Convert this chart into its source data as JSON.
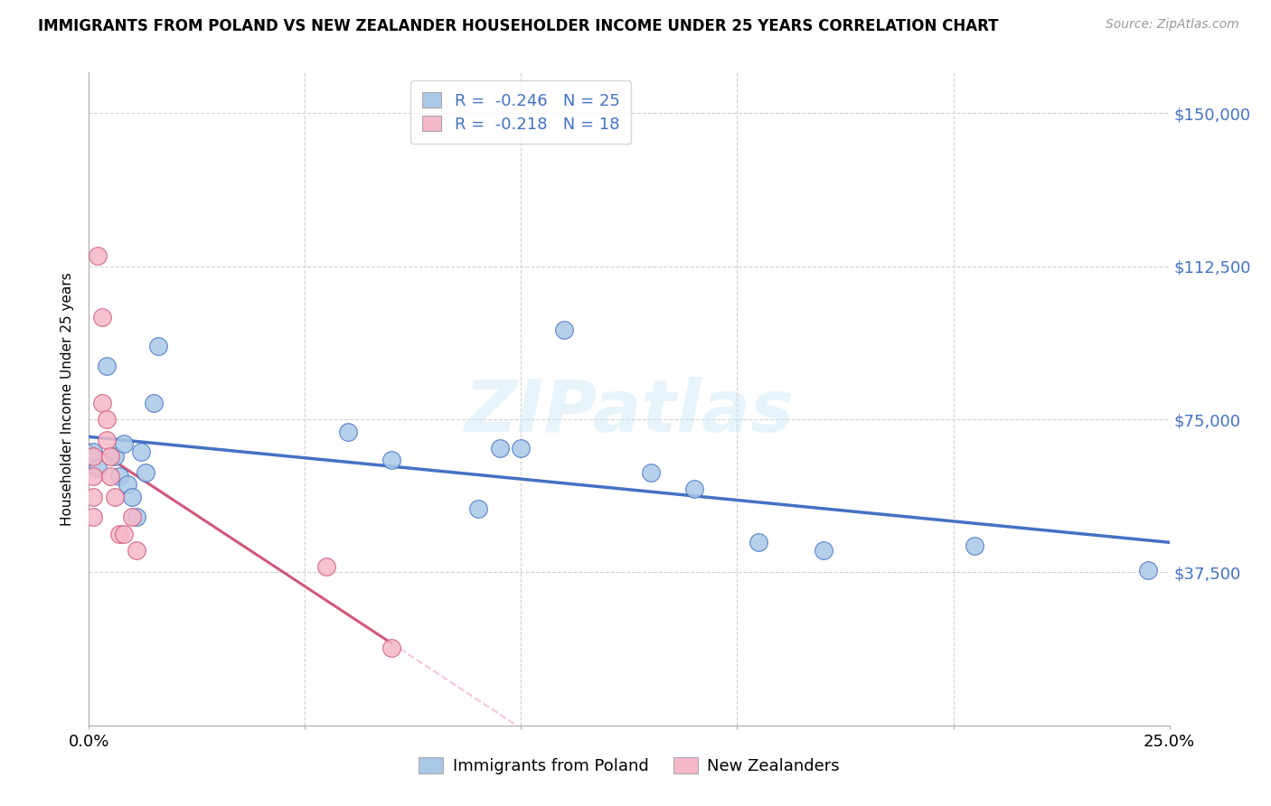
{
  "title": "IMMIGRANTS FROM POLAND VS NEW ZEALANDER HOUSEHOLDER INCOME UNDER 25 YEARS CORRELATION CHART",
  "source": "Source: ZipAtlas.com",
  "ylabel": "Householder Income Under 25 years",
  "legend_label1": "Immigrants from Poland",
  "legend_label2": "New Zealanders",
  "r1": "-0.246",
  "n1": "25",
  "r2": "-0.218",
  "n2": "18",
  "yticks": [
    0,
    37500,
    75000,
    112500,
    150000
  ],
  "ytick_labels": [
    "",
    "$37,500",
    "$75,000",
    "$112,500",
    "$150,000"
  ],
  "xlim": [
    0.0,
    0.25
  ],
  "ylim": [
    0,
    160000
  ],
  "color_blue": "#aac8e8",
  "color_pink": "#f5b8c8",
  "line_blue": "#4472C4",
  "line_pink": "#d05878",
  "line_pink_dash": "#f0b0c0",
  "poland_x": [
    0.001,
    0.002,
    0.004,
    0.006,
    0.007,
    0.008,
    0.009,
    0.01,
    0.011,
    0.012,
    0.013,
    0.015,
    0.016,
    0.06,
    0.07,
    0.09,
    0.095,
    0.1,
    0.11,
    0.13,
    0.14,
    0.155,
    0.17,
    0.205,
    0.245
  ],
  "poland_y": [
    67000,
    63000,
    88000,
    66000,
    61000,
    69000,
    59000,
    56000,
    51000,
    67000,
    62000,
    79000,
    93000,
    72000,
    65000,
    53000,
    68000,
    68000,
    97000,
    62000,
    58000,
    45000,
    43000,
    44000,
    38000
  ],
  "nz_x": [
    0.001,
    0.001,
    0.001,
    0.001,
    0.002,
    0.003,
    0.003,
    0.004,
    0.004,
    0.005,
    0.005,
    0.006,
    0.007,
    0.008,
    0.01,
    0.011,
    0.055,
    0.07
  ],
  "nz_y": [
    66000,
    61000,
    56000,
    51000,
    115000,
    100000,
    79000,
    75000,
    70000,
    66000,
    61000,
    56000,
    47000,
    47000,
    51000,
    43000,
    39000,
    19000
  ],
  "background_color": "#ffffff",
  "grid_color": "#d0d0d0"
}
